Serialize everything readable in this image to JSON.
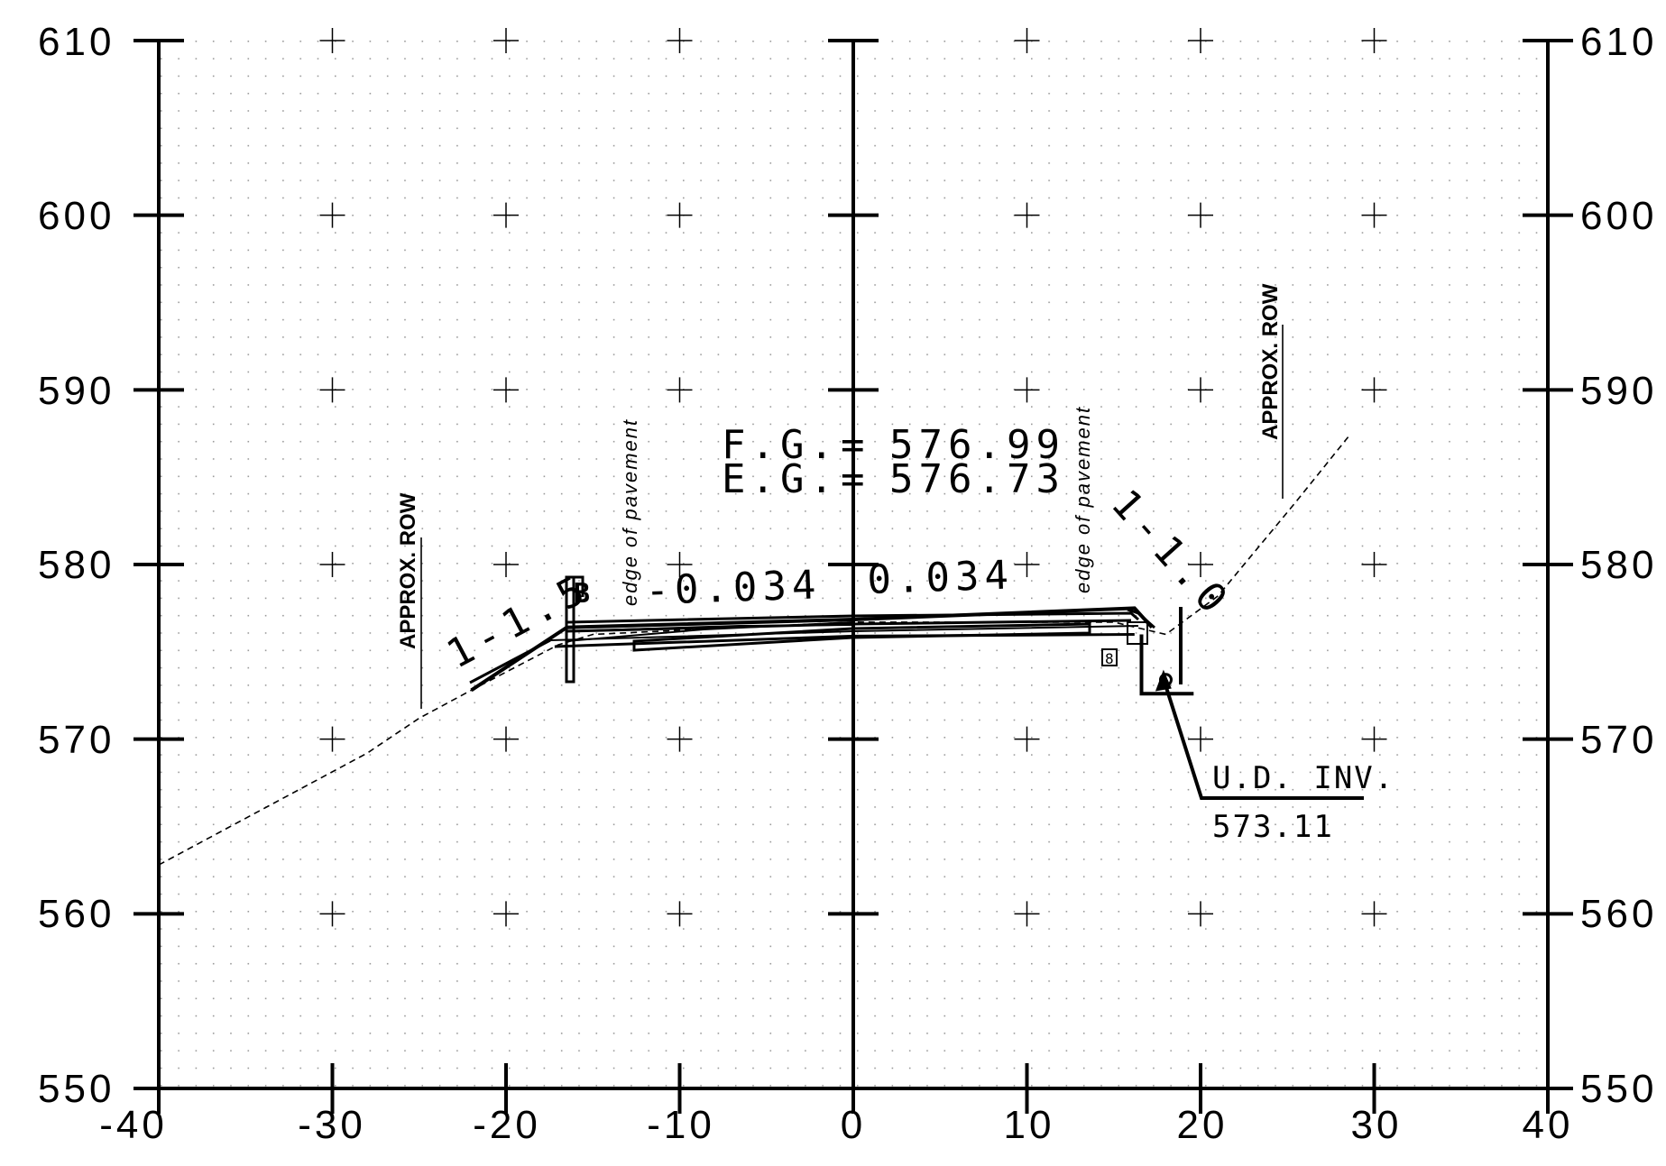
{
  "x_axis": {
    "range": [
      -40,
      40
    ],
    "ticks": [
      -40,
      -30,
      -20,
      -10,
      0,
      10,
      20,
      30,
      40
    ],
    "tick_labels": [
      "-40",
      "-30",
      "-20",
      "-10",
      "0",
      "10",
      "20",
      "30",
      "40"
    ]
  },
  "y_axis": {
    "range": [
      550,
      610
    ],
    "ticks": [
      550,
      560,
      570,
      580,
      590,
      600,
      610
    ],
    "tick_labels": [
      "550",
      "560",
      "570",
      "580",
      "590",
      "600",
      "610"
    ]
  },
  "grid": true,
  "elevations": {
    "fg_label": "F.G.",
    "fg_sign": "=",
    "fg_value": "576.99",
    "eg_label": "E.G.",
    "eg_sign": "=",
    "eg_value": "576.73"
  },
  "slopes": {
    "left_side": "1-1.5",
    "right_side": "1-1.0",
    "left_lane": "-0.034",
    "right_lane": "0.034"
  },
  "labels": {
    "row_left": "APPROX. ROW",
    "row_right": "APPROX. ROW",
    "pavement_left": "edge of pavement",
    "pavement_right": "edge of pavement",
    "ud_title": "U.D. INV.",
    "ud_value": "573.11",
    "small_mark": "8",
    "marker_b": "B"
  },
  "existing_ground": [
    [
      -40,
      562.8
    ],
    [
      -34,
      566.0
    ],
    [
      -28,
      569.2
    ],
    [
      -25,
      571.2
    ],
    [
      -22,
      572.8
    ],
    [
      -17,
      575.4
    ],
    [
      -15,
      576.0
    ],
    [
      0,
      576.7
    ],
    [
      15,
      576.7
    ],
    [
      18,
      576.0
    ],
    [
      21,
      578.2
    ],
    [
      25.5,
      583.6
    ],
    [
      28.5,
      587.3
    ]
  ],
  "finished_grade": [
    [
      -22,
      572.8
    ],
    [
      -16.5,
      576.4
    ],
    [
      0,
      576.85
    ],
    [
      16.2,
      577.5
    ],
    [
      17.2,
      576.4
    ]
  ],
  "pavement_bottom": [
    [
      -17.2,
      575.3
    ],
    [
      0,
      575.9
    ],
    [
      16.2,
      576.0
    ]
  ],
  "underdrain_trench": {
    "x": [
      16.6,
      19.6
    ],
    "bottom": 572.6,
    "top": 576.0,
    "pipe": [
      18.0,
      573.4
    ]
  }
}
